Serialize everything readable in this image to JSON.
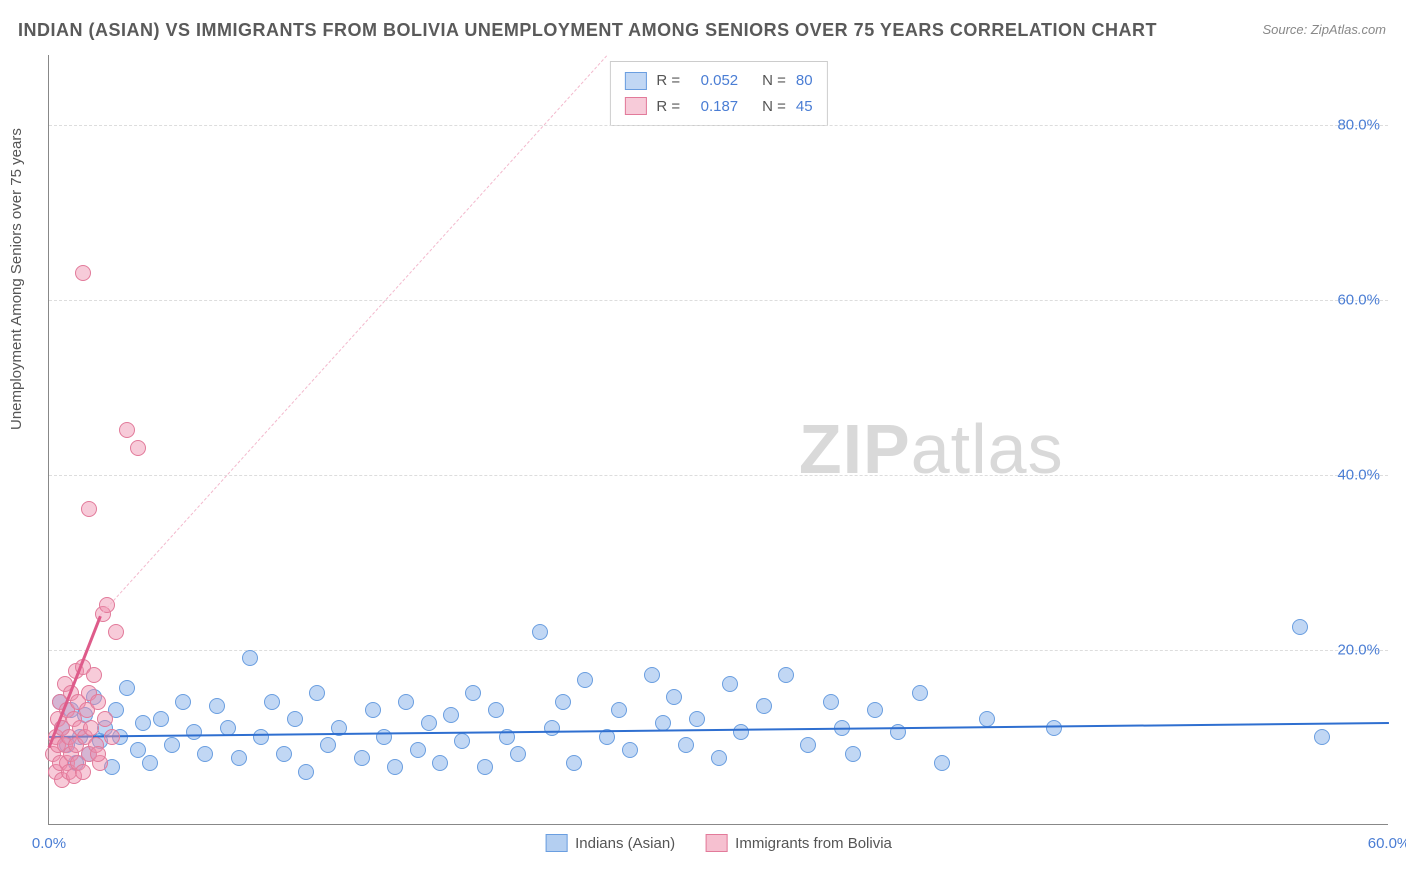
{
  "title": "INDIAN (ASIAN) VS IMMIGRANTS FROM BOLIVIA UNEMPLOYMENT AMONG SENIORS OVER 75 YEARS CORRELATION CHART",
  "source": "Source: ZipAtlas.com",
  "ylabel": "Unemployment Among Seniors over 75 years",
  "watermark_a": "ZIP",
  "watermark_b": "atlas",
  "chart": {
    "type": "scatter",
    "xlim": [
      0,
      60
    ],
    "ylim": [
      0,
      88
    ],
    "xticks": [
      {
        "v": 0,
        "label": "0.0%"
      },
      {
        "v": 60,
        "label": "60.0%"
      }
    ],
    "yticks": [
      {
        "v": 20,
        "label": "20.0%"
      },
      {
        "v": 40,
        "label": "40.0%"
      },
      {
        "v": 60,
        "label": "60.0%"
      },
      {
        "v": 80,
        "label": "80.0%"
      }
    ],
    "grid_color": "#dddddd",
    "background_color": "#ffffff",
    "axis_color": "#888888",
    "series": [
      {
        "name": "Indians (Asian)",
        "color_fill": "rgba(118,167,230,0.45)",
        "color_stroke": "#6a9ee0",
        "marker_radius": 8,
        "R": "0.052",
        "N": "80",
        "trend": {
          "x1": 0,
          "y1": 10.2,
          "x2": 60,
          "y2": 11.8,
          "color": "#2f6fd0",
          "width": 2.5,
          "dash": false
        },
        "points": [
          [
            0.5,
            14
          ],
          [
            0.6,
            11
          ],
          [
            0.8,
            9
          ],
          [
            1,
            13
          ],
          [
            1.2,
            7
          ],
          [
            1.4,
            10
          ],
          [
            1.6,
            12.5
          ],
          [
            1.8,
            8
          ],
          [
            2,
            14.5
          ],
          [
            2.3,
            9.5
          ],
          [
            2.5,
            11
          ],
          [
            2.8,
            6.5
          ],
          [
            3,
            13
          ],
          [
            3.2,
            10
          ],
          [
            3.5,
            15.5
          ],
          [
            4,
            8.5
          ],
          [
            4.2,
            11.5
          ],
          [
            4.5,
            7
          ],
          [
            5,
            12
          ],
          [
            5.5,
            9
          ],
          [
            6,
            14
          ],
          [
            6.5,
            10.5
          ],
          [
            7,
            8
          ],
          [
            7.5,
            13.5
          ],
          [
            8,
            11
          ],
          [
            8.5,
            7.5
          ],
          [
            9,
            19
          ],
          [
            9.5,
            10
          ],
          [
            10,
            14
          ],
          [
            10.5,
            8
          ],
          [
            11,
            12
          ],
          [
            11.5,
            6
          ],
          [
            12,
            15
          ],
          [
            12.5,
            9
          ],
          [
            13,
            11
          ],
          [
            14,
            7.5
          ],
          [
            14.5,
            13
          ],
          [
            15,
            10
          ],
          [
            15.5,
            6.5
          ],
          [
            16,
            14
          ],
          [
            16.5,
            8.5
          ],
          [
            17,
            11.5
          ],
          [
            17.5,
            7
          ],
          [
            18,
            12.5
          ],
          [
            18.5,
            9.5
          ],
          [
            19,
            15
          ],
          [
            19.5,
            6.5
          ],
          [
            20,
            13
          ],
          [
            20.5,
            10
          ],
          [
            21,
            8
          ],
          [
            22,
            22
          ],
          [
            22.5,
            11
          ],
          [
            23,
            14
          ],
          [
            23.5,
            7
          ],
          [
            24,
            16.5
          ],
          [
            25,
            10
          ],
          [
            25.5,
            13
          ],
          [
            26,
            8.5
          ],
          [
            27,
            17
          ],
          [
            27.5,
            11.5
          ],
          [
            28,
            14.5
          ],
          [
            28.5,
            9
          ],
          [
            29,
            12
          ],
          [
            30,
            7.5
          ],
          [
            30.5,
            16
          ],
          [
            31,
            10.5
          ],
          [
            32,
            13.5
          ],
          [
            33,
            17
          ],
          [
            34,
            9
          ],
          [
            35,
            14
          ],
          [
            35.5,
            11
          ],
          [
            36,
            8
          ],
          [
            37,
            13
          ],
          [
            38,
            10.5
          ],
          [
            39,
            15
          ],
          [
            40,
            7
          ],
          [
            42,
            12
          ],
          [
            45,
            11
          ],
          [
            56,
            22.5
          ],
          [
            57,
            10
          ]
        ]
      },
      {
        "name": "Immigrants from Bolivia",
        "color_fill": "rgba(238,140,170,0.45)",
        "color_stroke": "#e27a9a",
        "marker_radius": 8,
        "R": "0.187",
        "N": "45",
        "trend": {
          "x1": 0,
          "y1": 9,
          "x2": 2.3,
          "y2": 24,
          "color": "#de5b8a",
          "width": 3,
          "dash": false
        },
        "trend_ext": {
          "x1": 2.3,
          "y1": 24,
          "x2": 25,
          "y2": 88,
          "color": "#f3b9cd",
          "width": 1.5,
          "dash": true
        },
        "points": [
          [
            0.2,
            8
          ],
          [
            0.3,
            10
          ],
          [
            0.3,
            6
          ],
          [
            0.4,
            12
          ],
          [
            0.4,
            9
          ],
          [
            0.5,
            14
          ],
          [
            0.5,
            7
          ],
          [
            0.6,
            11
          ],
          [
            0.6,
            5
          ],
          [
            0.7,
            16
          ],
          [
            0.7,
            9
          ],
          [
            0.8,
            13
          ],
          [
            0.8,
            7
          ],
          [
            0.9,
            10
          ],
          [
            0.9,
            6
          ],
          [
            1,
            15
          ],
          [
            1,
            8
          ],
          [
            1.1,
            12
          ],
          [
            1.1,
            5.5
          ],
          [
            1.2,
            17.5
          ],
          [
            1.2,
            9
          ],
          [
            1.3,
            14
          ],
          [
            1.3,
            7
          ],
          [
            1.4,
            11
          ],
          [
            1.5,
            6
          ],
          [
            1.5,
            18
          ],
          [
            1.6,
            10
          ],
          [
            1.7,
            13
          ],
          [
            1.8,
            8
          ],
          [
            1.8,
            15
          ],
          [
            1.9,
            11
          ],
          [
            2,
            17
          ],
          [
            2.1,
            9
          ],
          [
            2.2,
            14
          ],
          [
            2.3,
            7
          ],
          [
            2.4,
            24
          ],
          [
            2.5,
            12
          ],
          [
            2.6,
            25
          ],
          [
            2.8,
            10
          ],
          [
            3,
            22
          ],
          [
            1.8,
            36
          ],
          [
            3.5,
            45
          ],
          [
            4,
            43
          ],
          [
            1.5,
            63
          ],
          [
            2.2,
            8
          ]
        ]
      }
    ],
    "legend_bottom": [
      {
        "label": "Indians (Asian)",
        "fill": "rgba(118,167,230,0.55)",
        "stroke": "#6a9ee0"
      },
      {
        "label": "Immigrants from Bolivia",
        "fill": "rgba(238,140,170,0.55)",
        "stroke": "#e27a9a"
      }
    ],
    "legend_top_label_color": "#555555",
    "legend_top_value_color": "#4a7dd4"
  }
}
